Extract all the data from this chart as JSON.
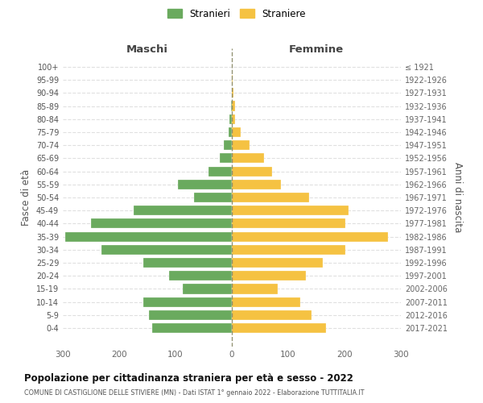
{
  "age_groups": [
    "100+",
    "95-99",
    "90-94",
    "85-89",
    "80-84",
    "75-79",
    "70-74",
    "65-69",
    "60-64",
    "55-59",
    "50-54",
    "45-49",
    "40-44",
    "35-39",
    "30-34",
    "25-29",
    "20-24",
    "15-19",
    "10-14",
    "5-9",
    "0-4"
  ],
  "birth_years": [
    "≤ 1921",
    "1922-1926",
    "1927-1931",
    "1932-1936",
    "1937-1941",
    "1942-1946",
    "1947-1951",
    "1952-1956",
    "1957-1961",
    "1962-1966",
    "1967-1971",
    "1972-1976",
    "1977-1981",
    "1982-1986",
    "1987-1991",
    "1992-1996",
    "1997-2001",
    "2002-2006",
    "2007-2011",
    "2012-2016",
    "2017-2021"
  ],
  "maschi": [
    0,
    0,
    0,
    2,
    4,
    6,
    14,
    22,
    42,
    96,
    67,
    175,
    250,
    295,
    232,
    157,
    112,
    87,
    157,
    147,
    142
  ],
  "femmine": [
    0,
    1,
    3,
    6,
    6,
    16,
    32,
    57,
    72,
    87,
    137,
    207,
    202,
    277,
    202,
    162,
    132,
    82,
    122,
    142,
    167
  ],
  "maschi_color": "#6aaa5e",
  "femmine_color": "#f5c242",
  "title": "Popolazione per cittadinanza straniera per età e sesso - 2022",
  "subtitle": "COMUNE DI CASTIGLIONE DELLE STIVIERE (MN) - Dati ISTAT 1° gennaio 2022 - Elaborazione TUTTITALIA.IT",
  "xlabel_left": "Maschi",
  "xlabel_right": "Femmine",
  "ylabel_left": "Fasce di età",
  "ylabel_right": "Anni di nascita",
  "legend_maschi": "Stranieri",
  "legend_femmine": "Straniere",
  "xlim": 300,
  "bg_color": "#ffffff",
  "grid_color": "#cccccc",
  "bar_height": 0.75
}
